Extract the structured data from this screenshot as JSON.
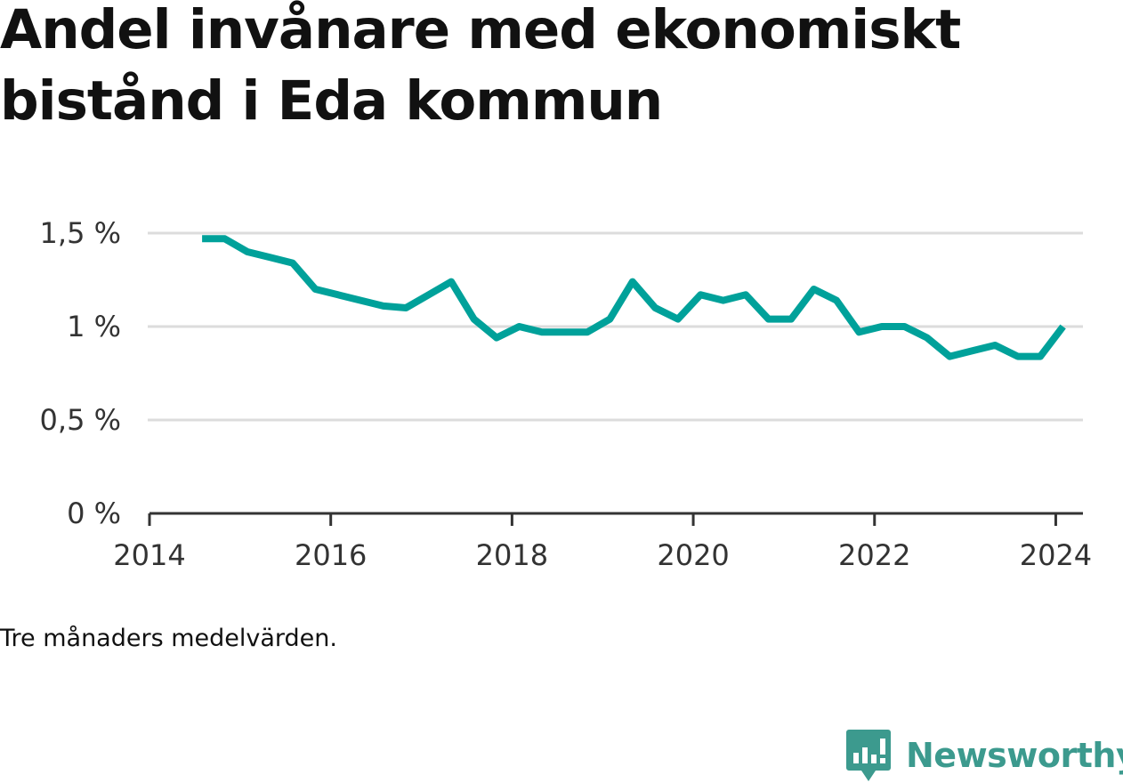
{
  "chart_data": {
    "type": "line",
    "title": "Andel invånare med ekonomiskt bistånd i Eda kommun",
    "note": "Tre månaders medelvärden.",
    "ylim": [
      0,
      1.5
    ],
    "xlim": [
      2014,
      2024.3
    ],
    "y_ticks": [
      {
        "value": 0,
        "label": "0 %"
      },
      {
        "value": 0.5,
        "label": "0,5 %"
      },
      {
        "value": 1,
        "label": "1 %"
      },
      {
        "value": 1.5,
        "label": "1,5 %"
      }
    ],
    "x_ticks": [
      {
        "value": 2014,
        "label": "2014"
      },
      {
        "value": 2016,
        "label": "2016"
      },
      {
        "value": 2018,
        "label": "2018"
      },
      {
        "value": 2020,
        "label": "2020"
      },
      {
        "value": 2022,
        "label": "2022"
      },
      {
        "value": 2024,
        "label": "2024"
      }
    ],
    "grid": true,
    "line_color": "#00a19a",
    "series": [
      {
        "x": [
          2014.58,
          2014.83,
          2015.08,
          2015.33,
          2015.58,
          2015.83,
          2016.08,
          2016.33,
          2016.58,
          2016.83,
          2017.08,
          2017.33,
          2017.58,
          2017.83,
          2018.08,
          2018.33,
          2018.58,
          2018.83,
          2019.08,
          2019.33,
          2019.58,
          2019.83,
          2020.08,
          2020.33,
          2020.58,
          2020.83,
          2021.08,
          2021.33,
          2021.58,
          2021.83,
          2022.08,
          2022.33,
          2022.58,
          2022.83,
          2023.08,
          2023.33,
          2023.58,
          2023.83,
          2024.08
        ],
        "values": [
          1.47,
          1.47,
          1.4,
          1.37,
          1.34,
          1.2,
          1.17,
          1.14,
          1.11,
          1.1,
          1.17,
          1.24,
          1.04,
          0.94,
          1.0,
          0.97,
          0.97,
          0.97,
          1.04,
          1.24,
          1.1,
          1.04,
          1.17,
          1.14,
          1.17,
          1.04,
          1.04,
          1.2,
          1.14,
          0.97,
          1.0,
          1.0,
          0.94,
          0.84,
          0.87,
          0.9,
          0.84,
          0.84,
          1.0
        ]
      }
    ]
  },
  "brand": {
    "name": "Newsworthy",
    "icon": "newsworthy-logo-icon",
    "color": "#3c9a8e"
  }
}
